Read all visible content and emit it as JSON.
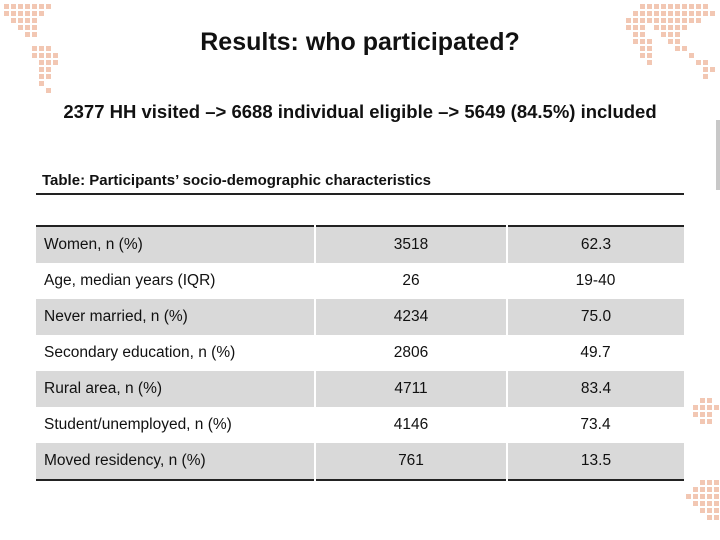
{
  "slide": {
    "title": "Results: who participated?",
    "subtitle": "2377 HH visited –> 6688 individual eligible –> 5649 (84.5%) included"
  },
  "table": {
    "caption": "Table: Participants’ socio-demographic characteristics",
    "rows": [
      {
        "label": "Women, n (%)",
        "n": "3518",
        "value": "62.3"
      },
      {
        "label": "Age, median years (IQR)",
        "n": "26",
        "value": "19-40"
      },
      {
        "label": "Never married, n (%)",
        "n": "4234",
        "value": "75.0"
      },
      {
        "label": "Secondary education, n (%)",
        "n": "2806",
        "value": "49.7"
      },
      {
        "label": "Rural area, n (%)",
        "n": "4711",
        "value": "83.4"
      },
      {
        "label": "Student/unemployed, n (%)",
        "n": "4146",
        "value": "73.4"
      },
      {
        "label": "Moved residency, n (%)",
        "n": "761",
        "value": "13.5"
      }
    ]
  },
  "colors": {
    "map_accent": "#f2c7b3",
    "row_shade": "#d9d9d9",
    "rule": "#222222"
  }
}
